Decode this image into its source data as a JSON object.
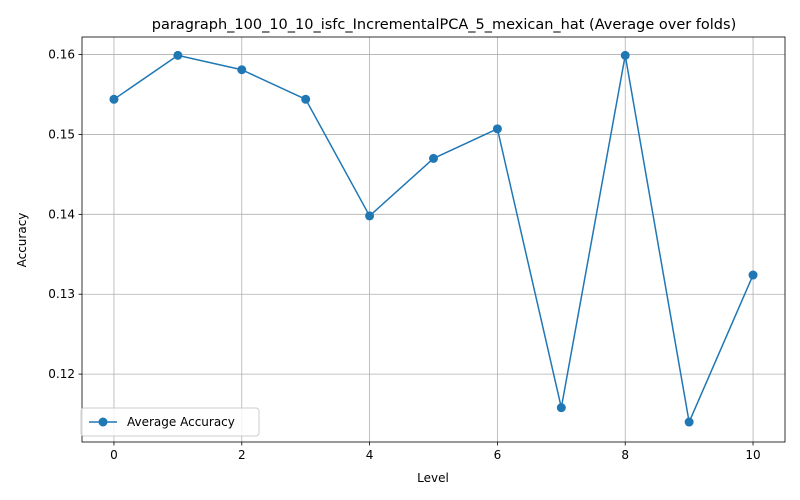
{
  "chart_data": {
    "type": "line",
    "title": "paragraph_100_10_10_isfc_IncrementalPCA_5_mexican_hat (Average over folds)",
    "xlabel": "Level",
    "ylabel": "Accuracy",
    "xlim": [
      -0.5,
      10.5
    ],
    "ylim": [
      0.1115,
      0.1622
    ],
    "xticks": [
      0,
      2,
      4,
      6,
      8,
      10
    ],
    "yticks": [
      0.12,
      0.13,
      0.14,
      0.15,
      0.16
    ],
    "ytick_labels": [
      "0.12",
      "0.13",
      "0.14",
      "0.15",
      "0.16"
    ],
    "grid": true,
    "legend_position": "lower-left",
    "series": [
      {
        "name": "Average Accuracy",
        "color": "#1f77b4",
        "marker": "circle",
        "x": [
          0,
          1,
          2,
          3,
          4,
          5,
          6,
          7,
          8,
          9,
          10
        ],
        "values": [
          0.1544,
          0.1599,
          0.1581,
          0.1544,
          0.1398,
          0.147,
          0.1507,
          0.1158,
          0.1599,
          0.114,
          0.1324
        ]
      }
    ]
  }
}
